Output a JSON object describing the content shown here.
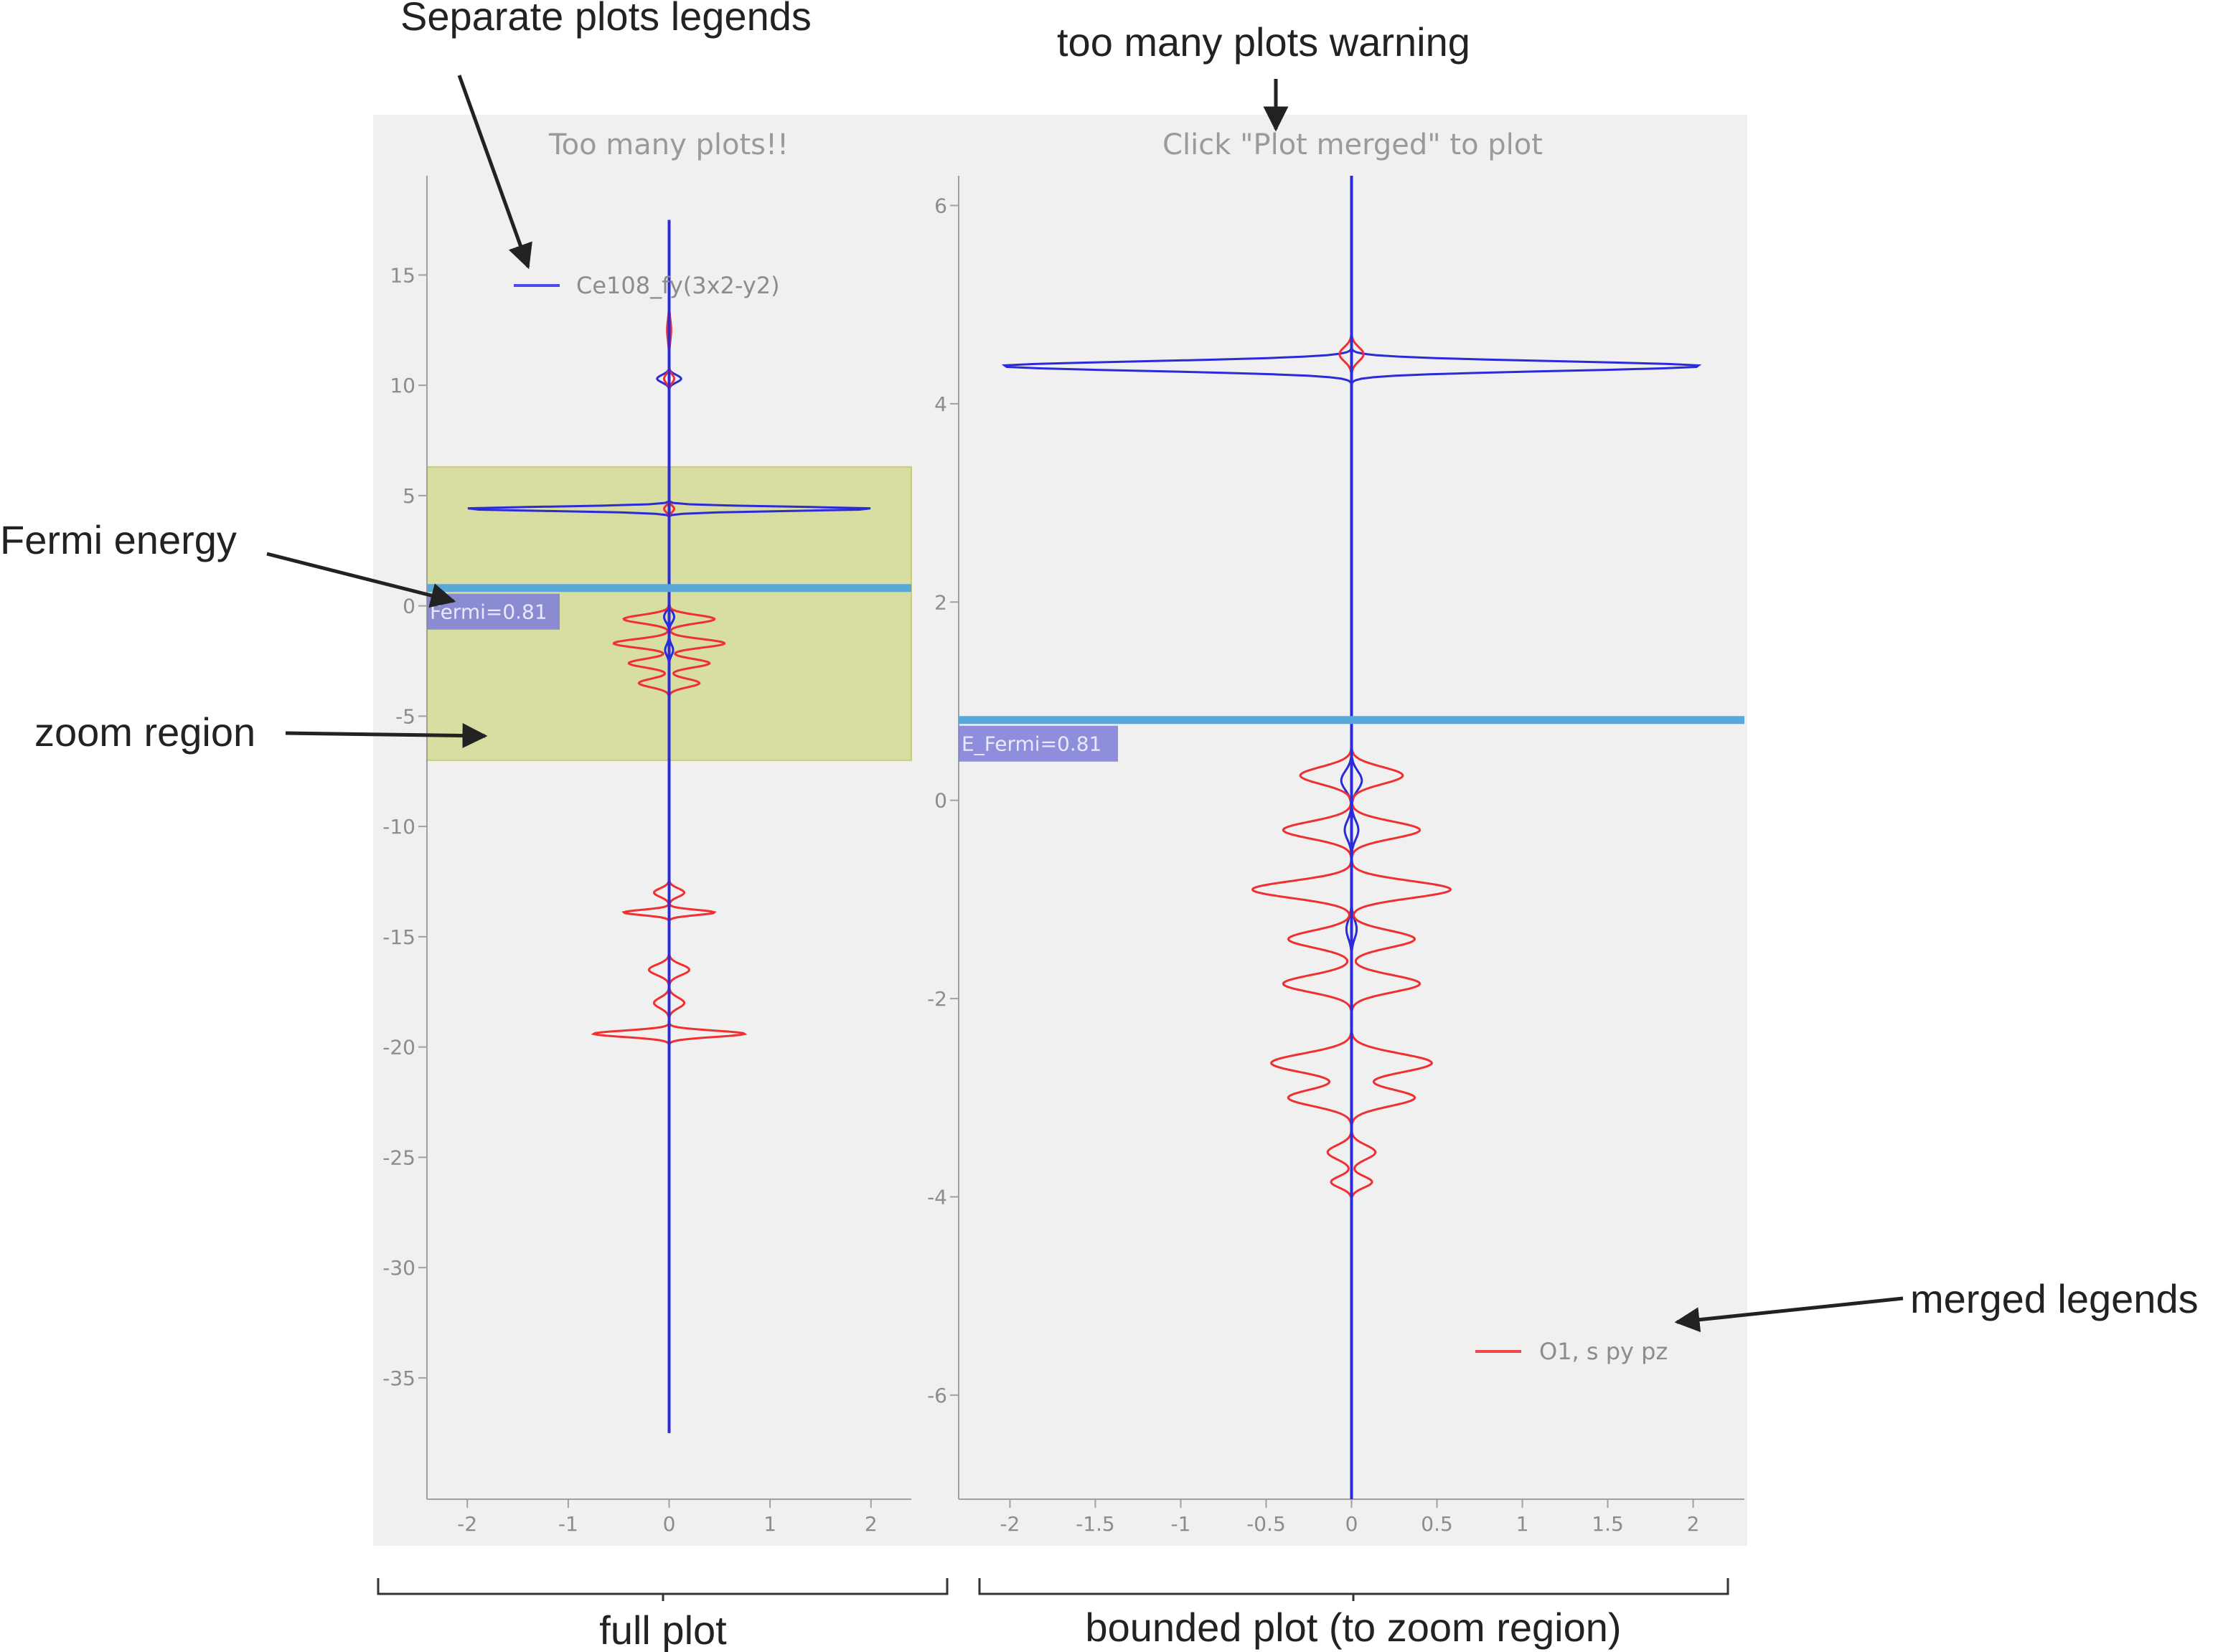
{
  "annotations": {
    "separate_legends": "Separate plots legends",
    "too_many_warning": "too many plots warning",
    "fermi_energy": "Fermi energy",
    "zoom_region": "zoom region",
    "merged_legends": "merged legends",
    "full_plot": "full plot",
    "bounded_plot": "bounded plot (to zoom region)"
  },
  "colors": {
    "panel_bg": "#f0f0f0",
    "blue_series": "#2b2bd9",
    "red_series": "#f03030",
    "fermi_line": "#5aa8d8",
    "fermi_label_bg": "#7d7dd8",
    "zoom_fill": "#d6dc9a"
  },
  "chart_data": [
    {
      "type": "line",
      "title": "Too many plots!!",
      "xlabel": "",
      "ylabel": "",
      "xlim": [
        -2.4,
        2.4
      ],
      "ylim": [
        -40.5,
        19.5
      ],
      "x_ticks": [
        -2,
        -1,
        0,
        1,
        2
      ],
      "y_ticks": [
        15,
        10,
        5,
        0,
        -5,
        -10,
        -15,
        -20,
        -25,
        -30,
        -35
      ],
      "legend": {
        "entries": [
          "Ce108_fy(3x2-y2)"
        ],
        "placement": "top-left"
      },
      "fermi": {
        "value": 0.81,
        "label": "Fermi=0.81"
      },
      "zoom_region": {
        "ymin": -7,
        "ymax": 6.3
      },
      "series": [
        {
          "name": "Ce108_fy(3x2-y2)",
          "color": "blue",
          "y_range": [
            -37.5,
            17.5
          ],
          "peaks": [
            {
              "y": 10.3,
              "amp": 0.12,
              "w": 0.35
            },
            {
              "y": 4.4,
              "amp": 2.05,
              "w": 0.2
            },
            {
              "y": -0.5,
              "amp": 0.05,
              "w": 0.5
            },
            {
              "y": -2.0,
              "amp": 0.04,
              "w": 0.5
            }
          ]
        },
        {
          "name": "",
          "color": "red",
          "y_range": [
            -20.5,
            14.5
          ],
          "peaks": [
            {
              "y": 12.5,
              "amp": 0.02,
              "w": 1.0
            },
            {
              "y": 10.3,
              "amp": 0.05,
              "w": 0.4
            },
            {
              "y": 4.4,
              "amp": 0.05,
              "w": 0.3
            },
            {
              "y": -0.6,
              "amp": 0.45,
              "w": 0.4
            },
            {
              "y": -1.7,
              "amp": 0.55,
              "w": 0.4
            },
            {
              "y": -2.6,
              "amp": 0.4,
              "w": 0.4
            },
            {
              "y": -3.5,
              "amp": 0.3,
              "w": 0.4
            },
            {
              "y": -13.0,
              "amp": 0.15,
              "w": 0.4
            },
            {
              "y": -13.9,
              "amp": 0.45,
              "w": 0.25
            },
            {
              "y": -16.5,
              "amp": 0.2,
              "w": 0.5
            },
            {
              "y": -18.0,
              "amp": 0.15,
              "w": 0.5
            },
            {
              "y": -19.4,
              "amp": 0.75,
              "w": 0.3
            }
          ]
        }
      ]
    },
    {
      "type": "line",
      "title": "Click \"Plot merged\" to plot",
      "xlabel": "",
      "ylabel": "",
      "xlim": [
        -2.3,
        2.3
      ],
      "ylim": [
        -7.05,
        6.3
      ],
      "x_ticks": [
        -2,
        -1.5,
        -1,
        -0.5,
        0,
        0.5,
        1,
        1.5,
        2
      ],
      "y_ticks": [
        6,
        4,
        2,
        0,
        -2,
        -4,
        -6
      ],
      "legend": {
        "entries": [
          "O1, s py pz"
        ],
        "placement": "bottom-right"
      },
      "fermi": {
        "value": 0.81,
        "label": "E_Fermi=0.81"
      },
      "series": [
        {
          "name": "",
          "color": "blue",
          "y_range": [
            -7.05,
            6.3
          ],
          "peaks": [
            {
              "y": 4.38,
              "amp": 2.05,
              "w": 0.1
            },
            {
              "y": 0.2,
              "amp": 0.06,
              "w": 0.2
            },
            {
              "y": -0.3,
              "amp": 0.04,
              "w": 0.2
            },
            {
              "y": -1.3,
              "amp": 0.03,
              "w": 0.2
            }
          ]
        },
        {
          "name": "O1, s py pz",
          "color": "red",
          "y_range": [
            -4.0,
            4.75
          ],
          "peaks": [
            {
              "y": 4.5,
              "amp": 0.07,
              "w": 0.15
            },
            {
              "y": 0.25,
              "amp": 0.3,
              "w": 0.18
            },
            {
              "y": -0.3,
              "amp": 0.4,
              "w": 0.18
            },
            {
              "y": -0.9,
              "amp": 0.58,
              "w": 0.18
            },
            {
              "y": -1.4,
              "amp": 0.37,
              "w": 0.18
            },
            {
              "y": -1.85,
              "amp": 0.4,
              "w": 0.18
            },
            {
              "y": -2.65,
              "amp": 0.47,
              "w": 0.2
            },
            {
              "y": -3.0,
              "amp": 0.37,
              "w": 0.18
            },
            {
              "y": -3.55,
              "amp": 0.14,
              "w": 0.15
            },
            {
              "y": -3.85,
              "amp": 0.12,
              "w": 0.12
            }
          ]
        }
      ]
    }
  ]
}
